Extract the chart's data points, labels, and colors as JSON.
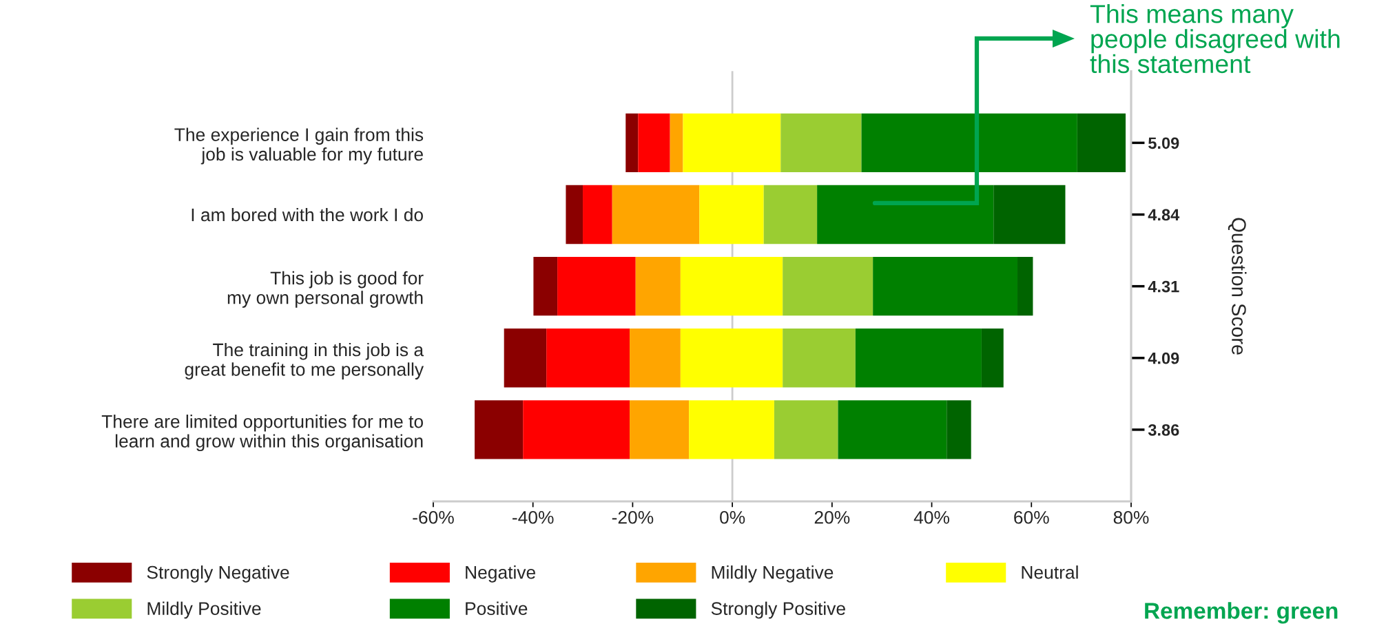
{
  "chart_data": {
    "type": "bar",
    "orientation": "horizontal",
    "categories": [
      "The experience I gain from this\njob is valuable for my future",
      "I am bored with the work I do",
      "This job is good for\nmy own personal growth",
      "The training in this job is a\ngreat benefit to me personally",
      "There are limited opportunities for me to\nlearn and grow within this organisation"
    ],
    "series": [
      {
        "name": "Strongly Negative",
        "color": "#8b0000",
        "base": [
          -21.4,
          -33.4,
          -39.9,
          -45.8,
          -51.7
        ],
        "values": [
          2.5,
          3.4,
          4.8,
          8.5,
          9.7
        ]
      },
      {
        "name": "Negative",
        "color": "#ff0000",
        "base": [
          -18.9,
          -30.0,
          -35.1,
          -37.3,
          -42.0
        ],
        "values": [
          6.4,
          5.9,
          15.7,
          16.7,
          21.4
        ]
      },
      {
        "name": "Mildly Negative",
        "color": "#ffa500",
        "base": [
          -12.5,
          -24.1,
          -19.4,
          -20.6,
          -20.6
        ],
        "values": [
          2.6,
          17.5,
          9.0,
          10.2,
          11.9
        ]
      },
      {
        "name": "Neutral",
        "color": "#ffff00",
        "base": [
          -9.9,
          -6.6,
          -10.4,
          -10.4,
          -8.7
        ],
        "values": [
          19.6,
          12.9,
          20.5,
          20.5,
          17.1
        ]
      },
      {
        "name": "Mildly Positive",
        "color": "#9acd32",
        "base": [
          9.7,
          6.3,
          10.1,
          10.1,
          8.4
        ],
        "values": [
          16.2,
          10.7,
          18.1,
          14.6,
          12.8
        ]
      },
      {
        "name": "Positive",
        "color": "#008000",
        "base": [
          25.9,
          17.0,
          28.2,
          24.7,
          21.2
        ],
        "values": [
          43.3,
          35.4,
          29.0,
          25.3,
          21.8
        ]
      },
      {
        "name": "Strongly Positive",
        "color": "#006400",
        "base": [
          69.2,
          52.4,
          57.2,
          50.0,
          43.0
        ],
        "values": [
          9.7,
          14.4,
          3.1,
          4.4,
          4.9
        ]
      }
    ],
    "xlim": [
      -60,
      80
    ],
    "xticks": [
      {
        "value": -60,
        "label": "-60%"
      },
      {
        "value": -40,
        "label": "-40%"
      },
      {
        "value": -20,
        "label": "-20%"
      },
      {
        "value": 0,
        "label": "0%"
      },
      {
        "value": 20,
        "label": "20%"
      },
      {
        "value": 40,
        "label": "40%"
      },
      {
        "value": 60,
        "label": "60%"
      },
      {
        "value": 80,
        "label": "80%"
      }
    ],
    "y2_categories": [
      "5.09",
      "4.84",
      "4.31",
      "4.09",
      "3.86"
    ],
    "y2label": "Question Score",
    "ref_lines": [
      {
        "axis": "x",
        "value": 0,
        "color": "#cccccc"
      }
    ],
    "annotations": [
      "This means many\npeople disagreed with\nthis statement",
      "Remember: green"
    ],
    "legend": "bottom"
  }
}
